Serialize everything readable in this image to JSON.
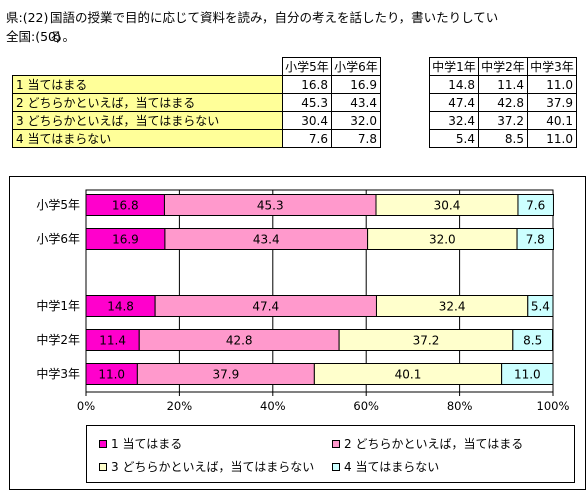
{
  "header": {
    "line1_prefix": "県:(22)",
    "line1_text": "国語の授業で目的に応じて資料を読み，自分の考えを話したり，書いたりしてい",
    "line2_prefix": "全国:(50)",
    "line2_text": "る。"
  },
  "table": {
    "columns": [
      "小学5年",
      "小学6年",
      "中学1年",
      "中学2年",
      "中学3年"
    ],
    "rows": [
      {
        "label": "1 当てはまる",
        "values": [
          "16.8",
          "16.9",
          "14.8",
          "11.4",
          "11.0"
        ]
      },
      {
        "label": "2 どちらかといえば，当てはまる",
        "values": [
          "45.3",
          "43.4",
          "47.4",
          "42.8",
          "37.9"
        ]
      },
      {
        "label": "3 どちらかといえば，当てはまらない",
        "values": [
          "30.4",
          "32.0",
          "32.4",
          "37.2",
          "40.1"
        ]
      },
      {
        "label": "4 当てはまらない",
        "values": [
          "7.6",
          "7.8",
          "5.4",
          "8.5",
          "11.0"
        ]
      }
    ]
  },
  "chart_data": {
    "type": "bar",
    "orientation": "horizontal",
    "stacked": true,
    "categories": [
      "小学5年",
      "小学6年",
      "",
      "中学1年",
      "中学2年",
      "中学3年"
    ],
    "series": [
      {
        "name": "1 当てはまる",
        "color": "#ff00cc",
        "values": [
          16.8,
          16.9,
          null,
          14.8,
          11.4,
          11.0
        ]
      },
      {
        "name": "2 どちらかといえば，当てはまる",
        "color": "#ff99cc",
        "values": [
          45.3,
          43.4,
          null,
          47.4,
          42.8,
          37.9
        ]
      },
      {
        "name": "3 どちらかといえば，当てはまらない",
        "color": "#ffffcc",
        "values": [
          30.4,
          32.0,
          null,
          32.4,
          37.2,
          40.1
        ]
      },
      {
        "name": "4 当てはまらない",
        "color": "#ccffff",
        "values": [
          7.6,
          7.8,
          null,
          5.4,
          8.5,
          11.0
        ]
      }
    ],
    "xlim": [
      0,
      100
    ],
    "xticks": [
      "0%",
      "20%",
      "40%",
      "60%",
      "80%",
      "100%"
    ],
    "grid": true,
    "legend_position": "bottom"
  }
}
